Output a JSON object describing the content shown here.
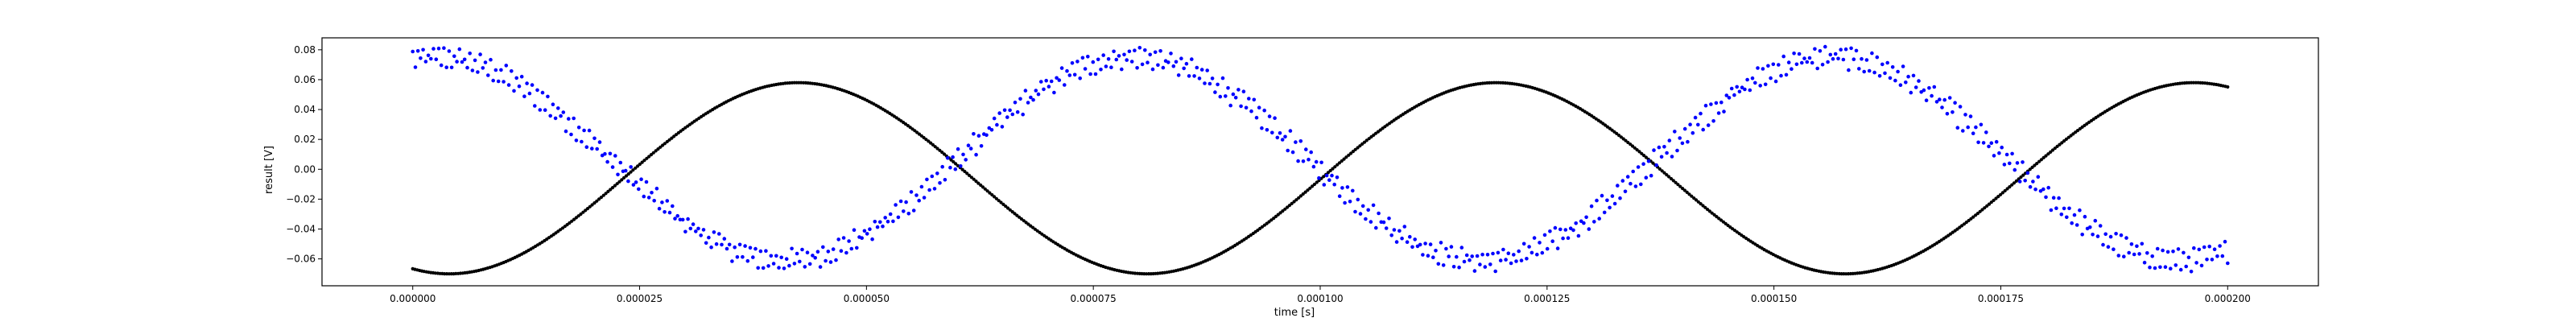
{
  "chart_data": {
    "type": "scatter",
    "xlabel": "time [s]",
    "ylabel": "result [V]",
    "xlim": [
      -1e-05,
      0.00021
    ],
    "ylim": [
      -0.078,
      0.088
    ],
    "xticks": [
      0.0,
      2.5e-05,
      5e-05,
      7.5e-05,
      0.0001,
      0.000125,
      0.00015,
      0.000175,
      0.0002
    ],
    "xtick_labels": [
      "0.000000",
      "0.000025",
      "0.000050",
      "0.000075",
      "0.000100",
      "0.000125",
      "0.000150",
      "0.000175",
      "0.000200"
    ],
    "yticks": [
      -0.06,
      -0.04,
      -0.02,
      0.0,
      0.02,
      0.04,
      0.06,
      0.08
    ],
    "ytick_labels": [
      "−0.06",
      "−0.04",
      "−0.02",
      "0.00",
      "0.02",
      "0.04",
      "0.06",
      "0.08"
    ],
    "grid": false,
    "legend": "none",
    "series": [
      {
        "color": "#000000",
        "marker": "dot",
        "x_range": [
          0.0,
          0.0002
        ],
        "sample_count": 800,
        "model": {
          "form": "-A*cos(2*pi*f*(t - t0))",
          "amplitude": 0.064,
          "frequency_hz": 13000,
          "t0": 4e-06,
          "offset": -0.006
        }
      },
      {
        "color": "#0000ff",
        "marker": "dot",
        "x_range": [
          0.0,
          0.0002
        ],
        "sample_count": 700,
        "bands": 2,
        "noise": 0.004,
        "model": {
          "form": "A*cos(2*pi*f*(t - t0))",
          "amplitude": 0.068,
          "frequency_hz": 13000,
          "t0": 2.5e-06,
          "offset": 0.007
        }
      }
    ]
  }
}
